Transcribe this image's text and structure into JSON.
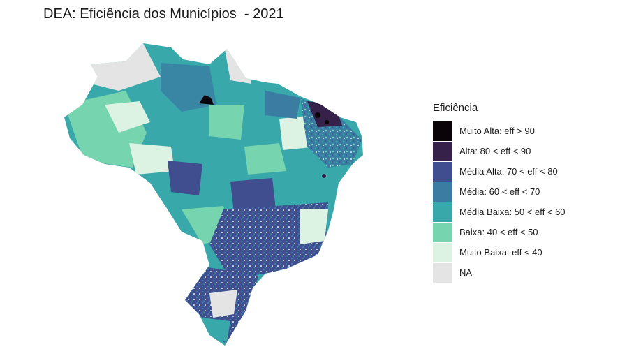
{
  "chart_data": {
    "type": "choropleth",
    "title": "DEA: Eficiência dos Municípios  - 2021",
    "legend_title": "Eficiência",
    "legend_placement": "right",
    "grid": false,
    "categories": [
      {
        "label": "Muito Alta: eff > 90",
        "color": "#0a0408"
      },
      {
        "label": "Alta: 80 < eff < 90",
        "color": "#35214a"
      },
      {
        "label": "Média Alta: 70 < eff < 80",
        "color": "#404d8f"
      },
      {
        "label": "Média: 60 < eff < 70",
        "color": "#3a7ca2"
      },
      {
        "label": "Média Baixa: 50 < eff < 60",
        "color": "#38a8ab"
      },
      {
        "label": "Baixa: 40 < eff < 50",
        "color": "#76d4ae"
      },
      {
        "label": "Muito Baixa: eff < 40",
        "color": "#dcf3e4"
      },
      {
        "label": "NA",
        "color": "#e4e4e4"
      }
    ]
  }
}
